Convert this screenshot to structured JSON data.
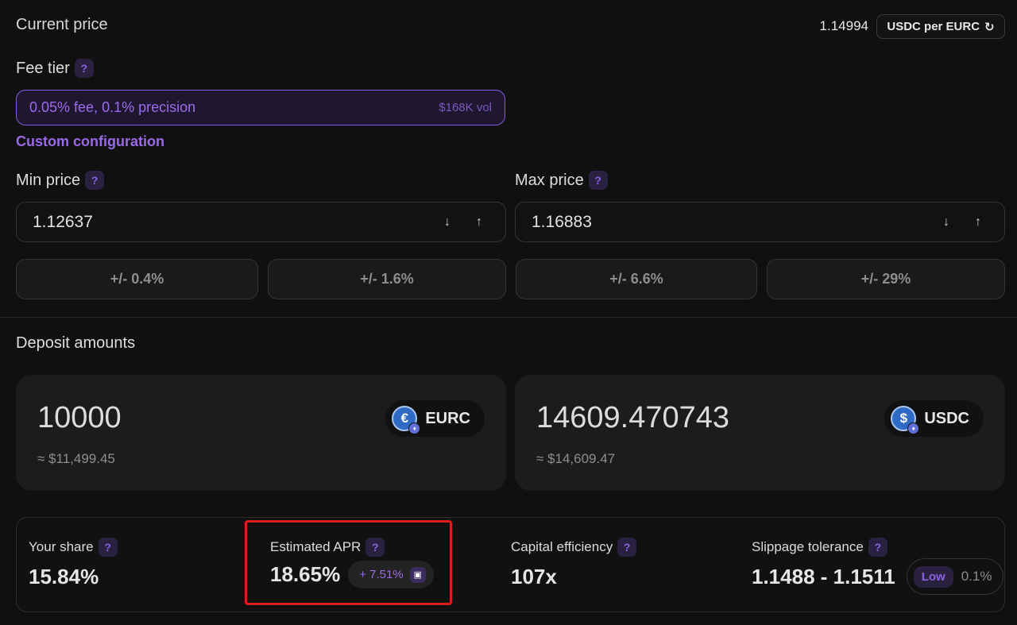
{
  "header": {
    "current_price_label": "Current price",
    "current_price_value": "1.14994",
    "unit_toggle_label": "USDC per EURC"
  },
  "fee_tier": {
    "label": "Fee tier",
    "selected": "0.05% fee, 0.1% precision",
    "volume": "$168K vol",
    "custom_link": "Custom configuration"
  },
  "range": {
    "min_label": "Min price",
    "min_value": "1.12637",
    "max_label": "Max price",
    "max_value": "1.16883",
    "presets": [
      "+/- 0.4%",
      "+/- 1.6%",
      "+/- 6.6%",
      "+/- 29%"
    ]
  },
  "deposit": {
    "label": "Deposit amounts",
    "tokens": [
      {
        "amount": "10000",
        "usd": "≈ $11,499.45",
        "symbol": "EURC",
        "glyph": "€"
      },
      {
        "amount": "14609.470743",
        "usd": "≈ $14,609.47",
        "symbol": "USDC",
        "glyph": "$"
      }
    ]
  },
  "stats": {
    "share_label": "Your share",
    "share_value": "15.84%",
    "apr_label": "Estimated APR",
    "apr_value": "18.65%",
    "apr_boost": "+ 7.51%",
    "efficiency_label": "Capital efficiency",
    "efficiency_value": "107x",
    "slippage_label": "Slippage tolerance",
    "slippage_range": "1.1488 - 1.1511",
    "slippage_level": "Low",
    "slippage_pct": "0.1%"
  },
  "icons": {
    "help": "?",
    "arrow_down": "↓",
    "arrow_up": "↑",
    "refresh": "↻",
    "eth_badge": "♦"
  },
  "colors": {
    "accent": "#9a6ae8",
    "background": "#101010",
    "highlight": "#e01b1b"
  }
}
